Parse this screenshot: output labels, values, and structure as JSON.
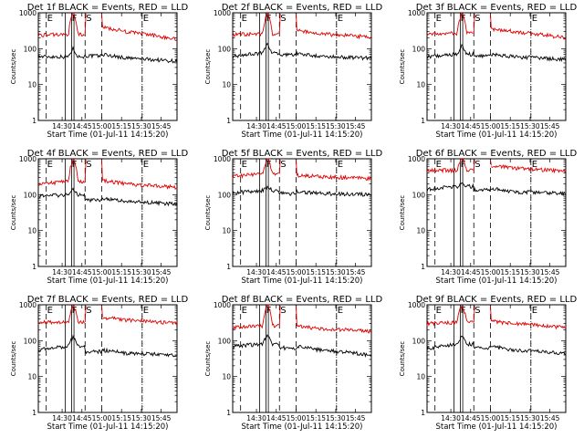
{
  "chart_data": [
    {
      "type": "line",
      "title": "Det 1f BLACK = Events, RED = LLD",
      "xlabel": "Start Time (01-Jul-11 14:15:20)",
      "ylabel": "Counts/sec",
      "yscale": "log",
      "ylim": [
        1,
        1000
      ],
      "x_ticks": [
        "14:30",
        "14:45",
        "15:00",
        "15:15",
        "15:30",
        "15:45"
      ],
      "y_ticks": [
        "1",
        "10",
        "100",
        "1000"
      ],
      "interval_marks": [
        "E",
        "F",
        "S",
        "E"
      ],
      "series": [
        {
          "color": "#000000",
          "level": [
            60,
            60,
            100,
            70,
            55,
            45
          ]
        },
        {
          "color": "#e00000",
          "level": [
            240,
            250,
            1000,
            400,
            300,
            180
          ]
        }
      ]
    },
    {
      "type": "line",
      "title": "Det 2f BLACK = Events, RED = LLD",
      "xlabel": "Start Time (01-Jul-11 14:15:20)",
      "ylabel": "Counts/sec",
      "yscale": "log",
      "ylim": [
        1,
        1000
      ],
      "x_ticks": [
        "14:30",
        "14:45",
        "15:00",
        "15:15",
        "15:30",
        "15:45"
      ],
      "y_ticks": [
        "1",
        "10",
        "100",
        "1000"
      ],
      "interval_marks": [
        "E",
        "F",
        "S",
        "E"
      ],
      "series": [
        {
          "color": "#000000",
          "level": [
            60,
            75,
            130,
            75,
            60,
            55
          ]
        },
        {
          "color": "#e00000",
          "level": [
            250,
            260,
            1000,
            320,
            260,
            210
          ]
        }
      ]
    },
    {
      "type": "line",
      "title": "Det 3f BLACK = Events, RED = LLD",
      "xlabel": "Start Time (01-Jul-11 14:15:20)",
      "ylabel": "Counts/sec",
      "yscale": "log",
      "ylim": [
        1,
        1000
      ],
      "x_ticks": [
        "14:30",
        "14:45",
        "15:00",
        "15:15",
        "15:30",
        "15:45"
      ],
      "y_ticks": [
        "1",
        "10",
        "100",
        "1000"
      ],
      "interval_marks": [
        "E",
        "F",
        "S",
        "E"
      ],
      "series": [
        {
          "color": "#000000",
          "level": [
            60,
            70,
            120,
            70,
            60,
            50
          ]
        },
        {
          "color": "#e00000",
          "level": [
            260,
            270,
            1000,
            360,
            300,
            200
          ]
        }
      ]
    },
    {
      "type": "line",
      "title": "Det 4f BLACK = Events, RED = LLD",
      "xlabel": "Start Time (01-Jul-11 14:15:20)",
      "ylabel": "Counts/sec",
      "yscale": "log",
      "ylim": [
        1,
        1000
      ],
      "x_ticks": [
        "14:30",
        "14:45",
        "15:00",
        "15:15",
        "15:30",
        "15:45"
      ],
      "y_ticks": [
        "1",
        "10",
        "100",
        "1000"
      ],
      "interval_marks": [
        "E",
        "F",
        "S",
        "E"
      ],
      "series": [
        {
          "color": "#000000",
          "level": [
            90,
            100,
            140,
            80,
            65,
            55
          ]
        },
        {
          "color": "#e00000",
          "level": [
            200,
            230,
            1000,
            250,
            200,
            160
          ]
        }
      ]
    },
    {
      "type": "line",
      "title": "Det 5f BLACK = Events, RED = LLD",
      "xlabel": "Start Time (01-Jul-11 14:15:20)",
      "ylabel": "Counts/sec",
      "yscale": "log",
      "ylim": [
        1,
        1000
      ],
      "x_ticks": [
        "14:30",
        "14:45",
        "15:00",
        "15:15",
        "15:30",
        "15:45"
      ],
      "y_ticks": [
        "1",
        "10",
        "100",
        "1000"
      ],
      "interval_marks": [
        "E",
        "F",
        "S",
        "E"
      ],
      "series": [
        {
          "color": "#000000",
          "level": [
            110,
            130,
            160,
            120,
            110,
            100
          ]
        },
        {
          "color": "#e00000",
          "level": [
            320,
            380,
            1000,
            350,
            320,
            280
          ]
        }
      ]
    },
    {
      "type": "line",
      "title": "Det 6f BLACK = Events, RED = LLD",
      "xlabel": "Start Time (01-Jul-11 14:15:20)",
      "ylabel": "Counts/sec",
      "yscale": "log",
      "ylim": [
        1,
        1000
      ],
      "x_ticks": [
        "14:30",
        "14:45",
        "15:00",
        "15:15",
        "15:30",
        "15:45"
      ],
      "y_ticks": [
        "1",
        "10",
        "100",
        "1000"
      ],
      "interval_marks": [
        "E",
        "F",
        "S",
        "E"
      ],
      "series": [
        {
          "color": "#000000",
          "level": [
            140,
            170,
            200,
            150,
            120,
            110
          ]
        },
        {
          "color": "#e00000",
          "level": [
            480,
            480,
            1000,
            650,
            550,
            450
          ]
        }
      ]
    },
    {
      "type": "line",
      "title": "Det 7f BLACK = Events, RED = LLD",
      "xlabel": "Start Time (01-Jul-11 14:15:20)",
      "ylabel": "Counts/sec",
      "yscale": "log",
      "ylim": [
        1,
        1000
      ],
      "x_ticks": [
        "14:30",
        "14:45",
        "15:00",
        "15:15",
        "15:30",
        "15:45"
      ],
      "y_ticks": [
        "1",
        "10",
        "100",
        "1000"
      ],
      "interval_marks": [
        "E",
        "F",
        "S",
        "E"
      ],
      "series": [
        {
          "color": "#000000",
          "level": [
            55,
            70,
            130,
            55,
            45,
            40
          ]
        },
        {
          "color": "#e00000",
          "level": [
            320,
            330,
            1000,
            450,
            380,
            300
          ]
        }
      ]
    },
    {
      "type": "line",
      "title": "Det 8f BLACK = Events, RED = LLD",
      "xlabel": "Start Time (01-Jul-11 14:15:20)",
      "ylabel": "Counts/sec",
      "yscale": "log",
      "ylim": [
        1,
        1000
      ],
      "x_ticks": [
        "14:30",
        "14:45",
        "15:00",
        "15:15",
        "15:30",
        "15:45"
      ],
      "y_ticks": [
        "1",
        "10",
        "100",
        "1000"
      ],
      "interval_marks": [
        "E",
        "F",
        "S",
        "E"
      ],
      "series": [
        {
          "color": "#000000",
          "level": [
            70,
            80,
            140,
            70,
            55,
            40
          ]
        },
        {
          "color": "#e00000",
          "level": [
            230,
            260,
            1000,
            260,
            220,
            180
          ]
        }
      ]
    },
    {
      "type": "line",
      "title": "Det 9f BLACK = Events, RED = LLD",
      "xlabel": "Start Time (01-Jul-11 14:15:20)",
      "ylabel": "Counts/sec",
      "yscale": "log",
      "ylim": [
        1,
        1000
      ],
      "x_ticks": [
        "14:30",
        "14:45",
        "15:00",
        "15:15",
        "15:30",
        "15:45"
      ],
      "y_ticks": [
        "1",
        "10",
        "100",
        "1000"
      ],
      "interval_marks": [
        "E",
        "F",
        "S",
        "E"
      ],
      "series": [
        {
          "color": "#000000",
          "level": [
            60,
            80,
            130,
            70,
            55,
            45
          ]
        },
        {
          "color": "#e00000",
          "level": [
            300,
            320,
            1000,
            350,
            300,
            230
          ]
        }
      ]
    }
  ]
}
